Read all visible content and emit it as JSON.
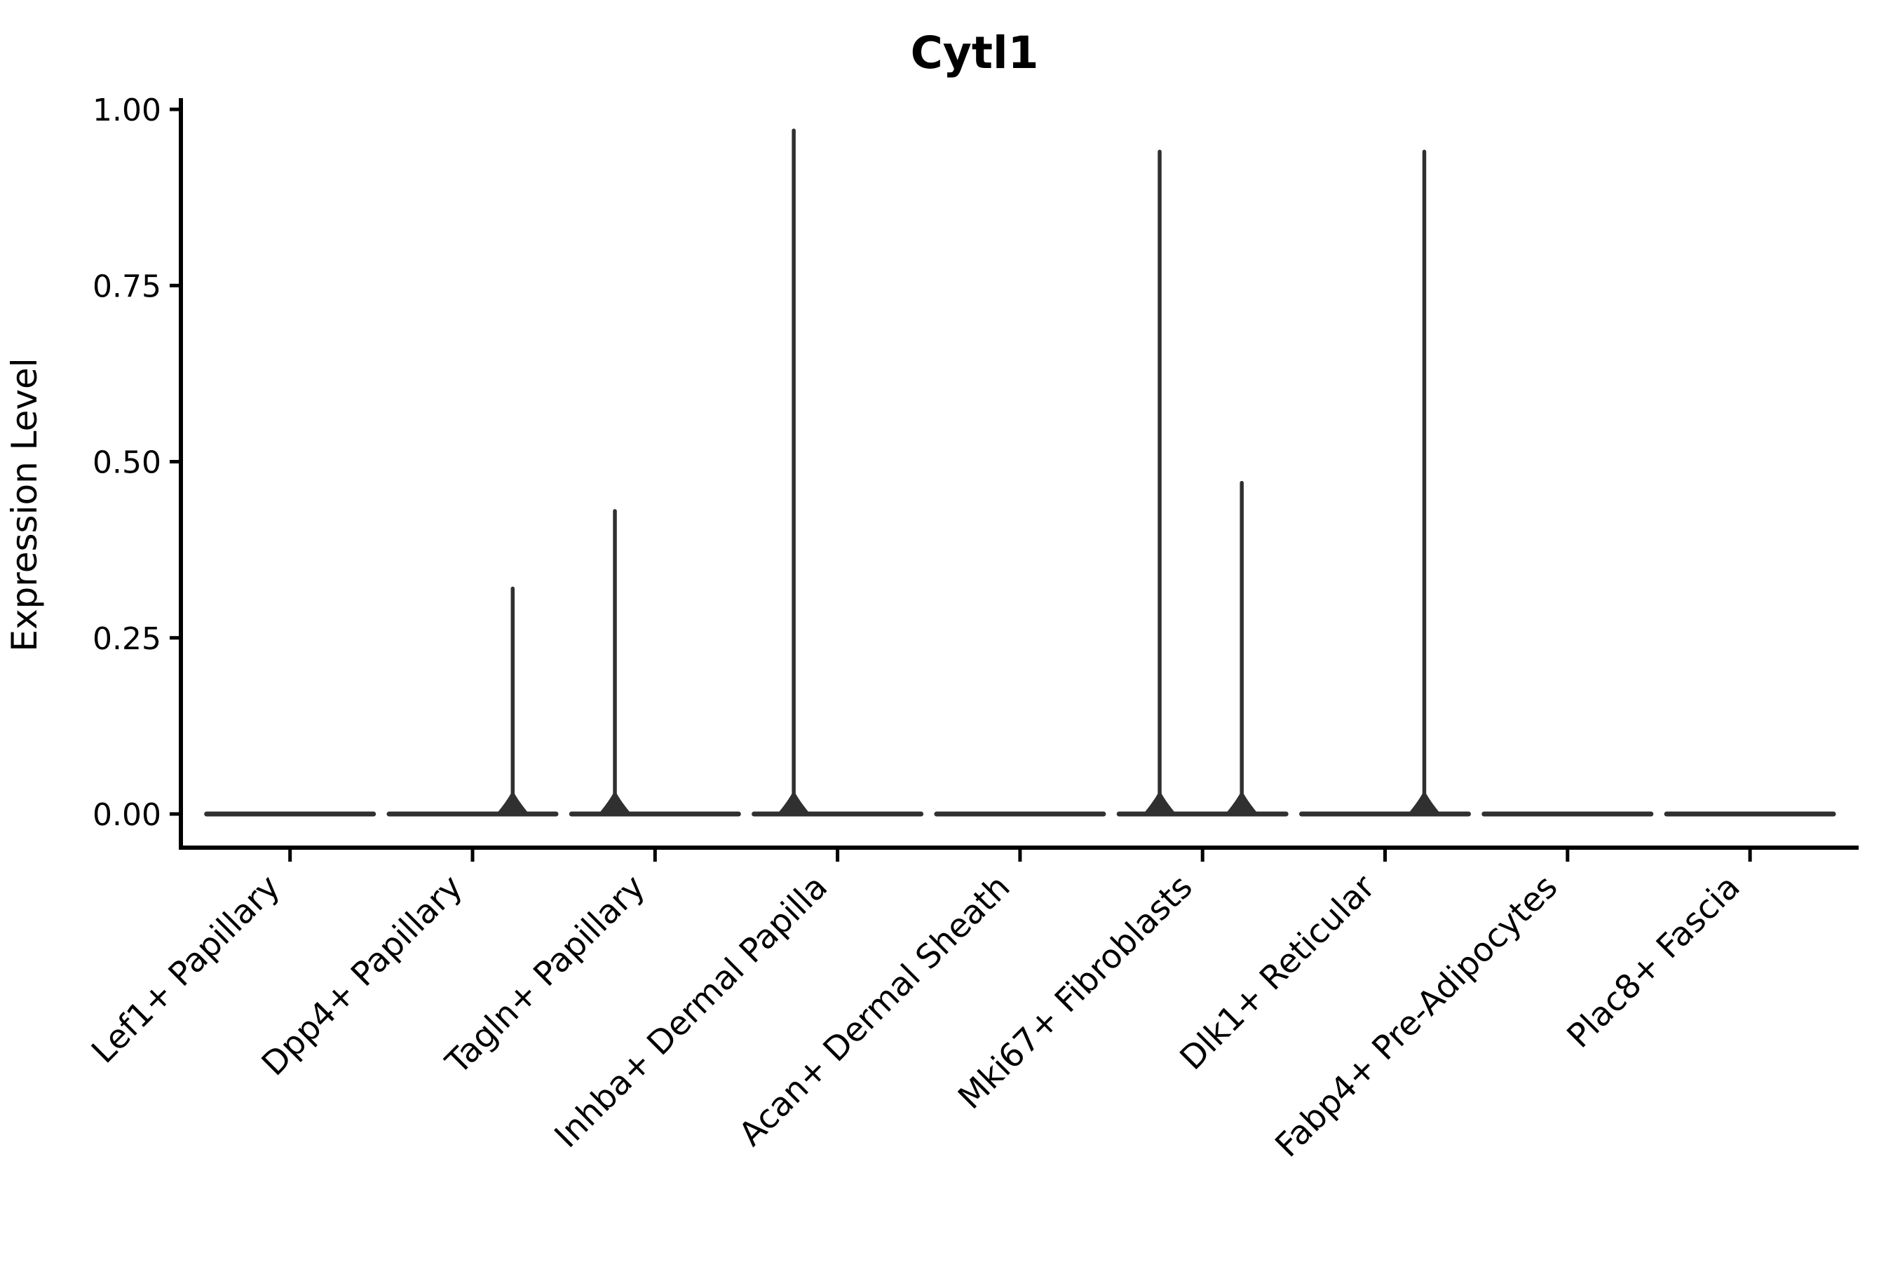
{
  "figure": {
    "background": "#ffffff",
    "colors": {
      "axis": "#000000",
      "violin": "#303030",
      "text": "#000000"
    }
  },
  "chart_data": {
    "type": "violin",
    "title": "Cytl1",
    "xlabel": "",
    "ylabel": "Expression Level",
    "ylim": [
      0,
      1.0
    ],
    "grid": false,
    "legend": "none",
    "y_ticks": [
      {
        "label": "1.00",
        "value": 1.0
      },
      {
        "label": "0.75",
        "value": 0.75
      },
      {
        "label": "0.50",
        "value": 0.5
      },
      {
        "label": "0.25",
        "value": 0.25
      },
      {
        "label": "0.00",
        "value": 0.0
      }
    ],
    "categories": [
      "Lef1+ Papillary",
      "Dpp4+ Papillary",
      "Tagln+ Papillary",
      "Inhba+ Dermal Papilla",
      "Acan+ Dermal Sheath",
      "Mki67+ Fibroblasts",
      "Dlk1+ Reticular",
      "Fabp4+ Pre-Adipocytes",
      "Plac8+ Fascia"
    ],
    "violins": [
      {
        "category": "Lef1+ Papillary",
        "bulk_at": 0.0,
        "spikes": []
      },
      {
        "category": "Dpp4+ Papillary",
        "bulk_at": 0.0,
        "spikes": [
          {
            "offset": 0.22,
            "peak": 0.32
          }
        ]
      },
      {
        "category": "Tagln+ Papillary",
        "bulk_at": 0.0,
        "spikes": [
          {
            "offset": -0.22,
            "peak": 0.43
          }
        ]
      },
      {
        "category": "Inhba+ Dermal Papilla",
        "bulk_at": 0.0,
        "spikes": [
          {
            "offset": -0.24,
            "peak": 0.97
          }
        ]
      },
      {
        "category": "Acan+ Dermal Sheath",
        "bulk_at": 0.0,
        "spikes": []
      },
      {
        "category": "Mki67+ Fibroblasts",
        "bulk_at": 0.0,
        "spikes": [
          {
            "offset": -0.235,
            "peak": 0.94
          },
          {
            "offset": 0.215,
            "peak": 0.47
          }
        ]
      },
      {
        "category": "Dlk1+ Reticular",
        "bulk_at": 0.0,
        "spikes": [
          {
            "offset": 0.215,
            "peak": 0.94
          }
        ]
      },
      {
        "category": "Fabp4+ Pre-Adipocytes",
        "bulk_at": 0.0,
        "spikes": []
      },
      {
        "category": "Plac8+ Fascia",
        "bulk_at": 0.0,
        "spikes": []
      }
    ]
  }
}
